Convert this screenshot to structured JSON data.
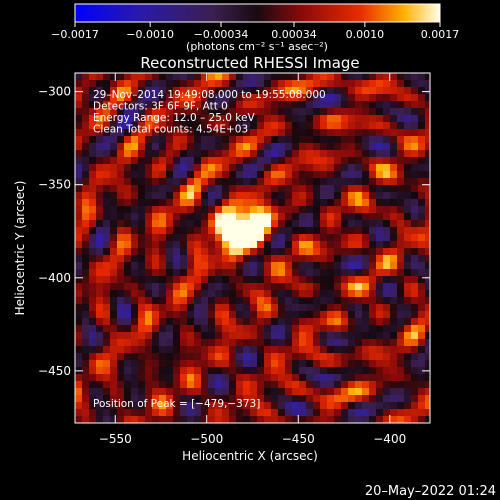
{
  "chart_data": {
    "type": "heatmap",
    "title": "Reconstructed RHESSI Image",
    "xlabel": "Heliocentric X (arcsec)",
    "ylabel": "Heliocentric Y (arcsec)",
    "xlim": [
      -572,
      -378
    ],
    "ylim": [
      -478,
      -290
    ],
    "x_ticks": [
      -550,
      -500,
      -450,
      -400
    ],
    "x_tick_labels": [
      "−550",
      "−500",
      "−450",
      "−400"
    ],
    "y_ticks": [
      -300,
      -350,
      -400,
      -450
    ],
    "y_tick_labels": [
      "−300",
      "−350",
      "−400",
      "−450"
    ],
    "colorbar": {
      "tick_values": [
        -0.0017,
        -0.001,
        -0.00034,
        0.00034,
        0.001,
        0.0017
      ],
      "tick_labels": [
        "−0.0017",
        "−0.0010",
        "−0.00034",
        "0.00034",
        "0.0010",
        "0.0017"
      ],
      "unit_label": "(photons cm⁻² s⁻¹ asec⁻²)",
      "range": [
        -0.0017,
        0.0017
      ]
    },
    "annotations": [
      "29–Nov–2014 19:49:08.000 to 19:55:08.000",
      "Detectors: 3F 6F 9F, Att 0",
      "Energy Range: 12.0 – 25.0 keV",
      "Clean     Total counts: 4.54E+03"
    ],
    "peak_label": "Position of Peak = [−479,−373]",
    "peak": [
      -479,
      -373
    ],
    "peak_value": 0.0017
  },
  "timestamp": "20–May–2022 01:24"
}
